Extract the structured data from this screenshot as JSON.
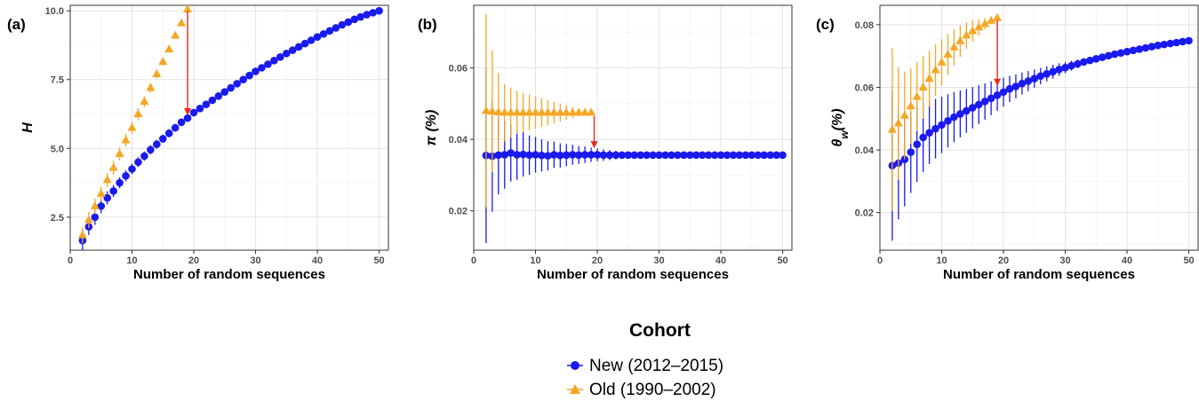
{
  "legend": {
    "title": "Cohort",
    "entries": [
      {
        "label": "New (2012–2015)",
        "color": "#1a1aee",
        "marker": "circle"
      },
      {
        "label": "Old (1990–2002)",
        "color": "#f5a623",
        "marker": "triangle"
      }
    ]
  },
  "colors": {
    "new": "#1a1aee",
    "old": "#f5a623",
    "arrow": "#e8281c"
  },
  "chart_data": [
    {
      "type": "scatter",
      "panel": "(a)",
      "xlabel": "Number of random sequences",
      "ylabel": "H",
      "xlim": [
        0,
        51.5
      ],
      "ylim": [
        1.3,
        10.2
      ],
      "xticks": [
        0,
        10,
        20,
        30,
        40,
        50
      ],
      "yticks": [
        2.5,
        5.0,
        7.5,
        10.0
      ],
      "ytick_labels": [
        "2.5",
        "5.0",
        "7.5",
        "10.0"
      ],
      "grid": true,
      "arrow": {
        "x": 19,
        "from": 10.0,
        "to": 6.2
      },
      "series": [
        {
          "name": "New (2012–2015)",
          "marker": "circle",
          "x": [
            2,
            3,
            4,
            5,
            6,
            7,
            8,
            9,
            10,
            11,
            12,
            13,
            14,
            15,
            16,
            17,
            18,
            19,
            20,
            21,
            22,
            23,
            24,
            25,
            26,
            27,
            28,
            29,
            30,
            31,
            32,
            33,
            34,
            35,
            36,
            37,
            38,
            39,
            40,
            41,
            42,
            43,
            44,
            45,
            46,
            47,
            48,
            49,
            50
          ],
          "y": [
            1.65,
            2.15,
            2.5,
            2.9,
            3.2,
            3.45,
            3.75,
            4.0,
            4.25,
            4.5,
            4.72,
            4.95,
            5.15,
            5.35,
            5.55,
            5.75,
            5.95,
            6.1,
            6.3,
            6.45,
            6.6,
            6.75,
            6.9,
            7.05,
            7.2,
            7.35,
            7.5,
            7.65,
            7.8,
            7.93,
            8.06,
            8.19,
            8.32,
            8.45,
            8.57,
            8.69,
            8.81,
            8.93,
            9.05,
            9.16,
            9.27,
            9.38,
            9.49,
            9.59,
            9.69,
            9.78,
            9.86,
            9.93,
            10.0
          ],
          "err": [
            0.35,
            0.3,
            0.28,
            0.26,
            0.24,
            0.22,
            0.2,
            0.2,
            0.19,
            0.18,
            0.17,
            0.17,
            0.16,
            0.15,
            0.15,
            0.14,
            0.14,
            0.13,
            0.13,
            0.12,
            0.12,
            0.11,
            0.11,
            0.1,
            0.1,
            0.1,
            0.09,
            0.09,
            0.08,
            0.08,
            0.08,
            0.07,
            0.07,
            0.07,
            0.06,
            0.06,
            0.05,
            0.05,
            0.05,
            0.04,
            0.04,
            0.04,
            0.03,
            0.03,
            0.03,
            0.02,
            0.02,
            0.01,
            0.0
          ]
        },
        {
          "name": "Old (1990–2002)",
          "marker": "triangle",
          "x": [
            2,
            3,
            4,
            5,
            6,
            7,
            8,
            9,
            10,
            11,
            12,
            13,
            14,
            15,
            16,
            17,
            18,
            19
          ],
          "y": [
            1.85,
            2.4,
            2.9,
            3.35,
            3.85,
            4.3,
            4.8,
            5.3,
            5.75,
            6.25,
            6.7,
            7.2,
            7.7,
            8.15,
            8.6,
            9.1,
            9.55,
            10.05
          ],
          "err": [
            0.3,
            0.3,
            0.28,
            0.27,
            0.26,
            0.25,
            0.24,
            0.23,
            0.22,
            0.21,
            0.2,
            0.18,
            0.16,
            0.14,
            0.12,
            0.1,
            0.06,
            0.0
          ]
        }
      ]
    },
    {
      "type": "scatter",
      "panel": "(b)",
      "xlabel": "Number of random sequences",
      "ylabel": "π (%)",
      "xlim": [
        0,
        51.5
      ],
      "ylim": [
        0.009,
        0.0775
      ],
      "xticks": [
        0,
        10,
        20,
        30,
        40,
        50
      ],
      "yticks": [
        0.02,
        0.04,
        0.06
      ],
      "ytick_labels": [
        "0.02",
        "0.04",
        "0.06"
      ],
      "grid": true,
      "arrow": {
        "x": 19.5,
        "from": 0.0465,
        "to": 0.0375
      },
      "series": [
        {
          "name": "New (2012–2015)",
          "marker": "circle",
          "x": [
            2,
            3,
            4,
            5,
            6,
            7,
            8,
            9,
            10,
            11,
            12,
            13,
            14,
            15,
            16,
            17,
            18,
            19,
            20,
            21,
            22,
            23,
            24,
            25,
            26,
            27,
            28,
            29,
            30,
            31,
            32,
            33,
            34,
            35,
            36,
            37,
            38,
            39,
            40,
            41,
            42,
            43,
            44,
            45,
            46,
            47,
            48,
            49,
            50
          ],
          "y": [
            0.0355,
            0.0353,
            0.0356,
            0.0357,
            0.0362,
            0.0357,
            0.0358,
            0.0356,
            0.0357,
            0.0355,
            0.0354,
            0.0357,
            0.0355,
            0.0356,
            0.0357,
            0.0356,
            0.0357,
            0.0357,
            0.0357,
            0.0356,
            0.0356,
            0.0356,
            0.0356,
            0.0356,
            0.0356,
            0.0356,
            0.0356,
            0.0356,
            0.0356,
            0.0356,
            0.0356,
            0.0356,
            0.0356,
            0.0356,
            0.0356,
            0.0356,
            0.0356,
            0.0356,
            0.0356,
            0.0356,
            0.0356,
            0.0356,
            0.0356,
            0.0356,
            0.0356,
            0.0356,
            0.0356,
            0.0356,
            0.0356
          ],
          "err": [
            0.0245,
            0.0155,
            0.011,
            0.0095,
            0.008,
            0.007,
            0.0062,
            0.0055,
            0.005,
            0.0045,
            0.0041,
            0.0037,
            0.0034,
            0.0031,
            0.0028,
            0.0025,
            0.0023,
            0.002,
            0.0018,
            0.0016,
            0.0014,
            0.0012,
            0.001,
            0.0009,
            0.0008,
            0.0007,
            0.0006,
            0.0005,
            0.0004,
            0.0004,
            0.0003,
            0.0003,
            0.0002,
            0.0002,
            0.0002,
            0.0001,
            0.0001,
            0.0001,
            0.0001,
            0.0001,
            0.0001,
            0.0,
            0.0,
            0.0,
            0.0,
            0.0,
            0.0,
            0.0,
            0.0
          ]
        },
        {
          "name": "Old (1990–2002)",
          "marker": "triangle",
          "x": [
            2,
            3,
            4,
            5,
            6,
            7,
            8,
            9,
            10,
            11,
            12,
            13,
            14,
            15,
            16,
            17,
            18,
            19
          ],
          "y": [
            0.048,
            0.0478,
            0.0476,
            0.0475,
            0.0475,
            0.0475,
            0.0475,
            0.0475,
            0.0475,
            0.0475,
            0.0475,
            0.0475,
            0.0475,
            0.0475,
            0.0475,
            0.0475,
            0.0475,
            0.0475
          ],
          "err": [
            0.027,
            0.017,
            0.011,
            0.008,
            0.007,
            0.006,
            0.0055,
            0.005,
            0.0045,
            0.004,
            0.0035,
            0.003,
            0.0025,
            0.002,
            0.0015,
            0.001,
            0.0006,
            0.0
          ]
        }
      ]
    },
    {
      "type": "scatter",
      "panel": "(c)",
      "xlabel": "Number of random sequences",
      "ylabel": "θ",
      "ylabel_subscript": "w",
      "ylabel_suffix": "(%)",
      "xlim": [
        0,
        51.5
      ],
      "ylim": [
        0.008,
        0.0862
      ],
      "xticks": [
        0,
        10,
        20,
        30,
        40,
        50
      ],
      "yticks": [
        0.02,
        0.04,
        0.06,
        0.08
      ],
      "ytick_labels": [
        "0.02",
        "0.04",
        "0.06",
        "0.08"
      ],
      "grid": true,
      "arrow": {
        "x": 19,
        "from": 0.0815,
        "to": 0.0605
      },
      "series": [
        {
          "name": "New (2012–2015)",
          "marker": "circle",
          "x": [
            2,
            3,
            4,
            5,
            6,
            7,
            8,
            9,
            10,
            11,
            12,
            13,
            14,
            15,
            16,
            17,
            18,
            19,
            20,
            21,
            22,
            23,
            24,
            25,
            26,
            27,
            28,
            29,
            30,
            31,
            32,
            33,
            34,
            35,
            36,
            37,
            38,
            39,
            40,
            41,
            42,
            43,
            44,
            45,
            46,
            47,
            48,
            49,
            50
          ],
          "y": [
            0.035,
            0.0358,
            0.037,
            0.0393,
            0.0418,
            0.044,
            0.0455,
            0.0468,
            0.048,
            0.0493,
            0.0505,
            0.0515,
            0.0525,
            0.0535,
            0.0545,
            0.0555,
            0.0565,
            0.0575,
            0.0585,
            0.0595,
            0.0603,
            0.0612,
            0.062,
            0.0628,
            0.0636,
            0.0643,
            0.065,
            0.0657,
            0.0663,
            0.0669,
            0.0675,
            0.0681,
            0.0686,
            0.0691,
            0.0696,
            0.0701,
            0.0706,
            0.071,
            0.0714,
            0.0718,
            0.0722,
            0.0726,
            0.073,
            0.0734,
            0.0737,
            0.074,
            0.0743,
            0.0746,
            0.0749
          ],
          "err": [
            0.024,
            0.018,
            0.015,
            0.013,
            0.012,
            0.011,
            0.01,
            0.0095,
            0.009,
            0.0085,
            0.008,
            0.0075,
            0.007,
            0.0066,
            0.0062,
            0.0058,
            0.0054,
            0.005,
            0.0046,
            0.0042,
            0.0038,
            0.0035,
            0.0032,
            0.0029,
            0.0026,
            0.0024,
            0.0022,
            0.002,
            0.0018,
            0.0016,
            0.0014,
            0.0012,
            0.0011,
            0.001,
            0.0009,
            0.0008,
            0.0007,
            0.0006,
            0.0005,
            0.0004,
            0.0004,
            0.0003,
            0.0003,
            0.0002,
            0.0002,
            0.0001,
            0.0001,
            0.0,
            0.0
          ]
        },
        {
          "name": "Old (1990–2002)",
          "marker": "triangle",
          "x": [
            2,
            3,
            4,
            5,
            6,
            7,
            8,
            9,
            10,
            11,
            12,
            13,
            14,
            15,
            16,
            17,
            18,
            19
          ],
          "y": [
            0.0465,
            0.0485,
            0.051,
            0.054,
            0.057,
            0.06,
            0.0628,
            0.0655,
            0.068,
            0.0705,
            0.0728,
            0.0748,
            0.0766,
            0.078,
            0.0792,
            0.0803,
            0.0813,
            0.0822
          ],
          "err": [
            0.026,
            0.018,
            0.014,
            0.012,
            0.011,
            0.01,
            0.009,
            0.0082,
            0.0074,
            0.0066,
            0.0058,
            0.005,
            0.0042,
            0.0034,
            0.0026,
            0.0018,
            0.001,
            0.0
          ]
        }
      ]
    }
  ]
}
